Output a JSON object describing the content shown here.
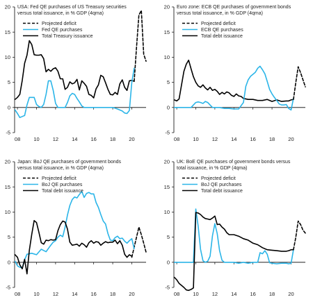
{
  "chart_data": [
    {
      "type": "line",
      "title": "USA: Fed QE purchases of US Treasury securities versus total issuance, in % GDP (4qma)",
      "title_lines": [
        "USA: Fed QE purchases of US Treasury securities",
        "versus total issuance, in % GDP (4qma)"
      ],
      "xlim": [
        2007.7,
        2021.5
      ],
      "ylim": [
        -5,
        20
      ],
      "xticks": [
        "08",
        "10",
        "12",
        "14",
        "16",
        "18",
        "20"
      ],
      "yticks": [
        "-5",
        "0",
        "5",
        "10",
        "15",
        "20"
      ],
      "legend_order": [
        2,
        1,
        0
      ],
      "series": [
        {
          "name": "Total Treasury issuance",
          "color": "#000000",
          "style": "solid",
          "x": [
            2007.75,
            2008.0,
            2008.25,
            2008.5,
            2008.75,
            2009.0,
            2009.25,
            2009.5,
            2009.75,
            2010.0,
            2010.25,
            2010.5,
            2010.75,
            2011.0,
            2011.25,
            2011.5,
            2011.75,
            2012.0,
            2012.25,
            2012.5,
            2012.75,
            2013.0,
            2013.25,
            2013.5,
            2013.75,
            2014.0,
            2014.25,
            2014.5,
            2014.75,
            2015.0,
            2015.25,
            2015.5,
            2015.75,
            2016.0,
            2016.25,
            2016.5,
            2016.75,
            2017.0,
            2017.25,
            2017.5,
            2017.75,
            2018.0,
            2018.25,
            2018.5,
            2018.75,
            2019.0,
            2019.25,
            2019.5,
            2019.75,
            2020.0,
            2020.25
          ],
          "y": [
            1.6,
            2.0,
            2.6,
            5.4,
            8.8,
            10.4,
            13.3,
            12.5,
            10.5,
            10.4,
            10.4,
            10.5,
            9.7,
            7.1,
            7.6,
            7.2,
            7.7,
            7.9,
            7.2,
            5.7,
            5.7,
            3.6,
            4.0,
            5.1,
            4.7,
            4.9,
            5.6,
            3.5,
            5.3,
            4.8,
            4.2,
            2.6,
            2.4,
            1.9,
            3.7,
            4.5,
            6.4,
            6.1,
            4.9,
            3.6,
            2.6,
            2.5,
            3.0,
            2.6,
            4.7,
            5.5,
            4.0,
            3.4,
            5.3,
            5.4,
            5.2
          ]
        },
        {
          "name": "Fed QE purchases",
          "color": "#2bb5e8",
          "style": "solid",
          "x": [
            2007.75,
            2008.0,
            2008.25,
            2008.5,
            2008.75,
            2009.0,
            2009.25,
            2009.5,
            2009.75,
            2010.0,
            2010.25,
            2010.5,
            2010.75,
            2011.0,
            2011.25,
            2011.5,
            2011.75,
            2012.0,
            2012.25,
            2012.5,
            2012.75,
            2013.0,
            2013.25,
            2013.5,
            2013.75,
            2014.0,
            2014.25,
            2014.5,
            2014.75,
            2015.0,
            2016.0,
            2017.0,
            2018.0,
            2018.5,
            2019.0,
            2019.25,
            2019.5,
            2019.75,
            2020.0,
            2020.25
          ],
          "y": [
            -0.5,
            -1.2,
            -2.0,
            -1.8,
            -1.6,
            0.5,
            2.0,
            2.0,
            2.0,
            0.6,
            0.2,
            0.0,
            0.6,
            2.6,
            5.3,
            5.3,
            3.4,
            0.8,
            0.0,
            0.0,
            0.0,
            0.0,
            1.0,
            2.3,
            2.8,
            2.6,
            1.8,
            1.1,
            0.3,
            0.0,
            0.0,
            0.0,
            0.0,
            -0.3,
            -0.7,
            -1.1,
            -1.2,
            -0.6,
            5.0,
            7.8
          ]
        },
        {
          "name": "Projected deficit",
          "color": "#000000",
          "style": "dashed",
          "x": [
            2020.25,
            2020.5,
            2020.75,
            2021.0,
            2021.25,
            2021.5
          ],
          "y": [
            5.2,
            12.0,
            18.4,
            19.3,
            10.6,
            9.2
          ]
        }
      ]
    },
    {
      "type": "line",
      "title": "Euro zone: ECB QE purchases of government bonds versus total issuance, in % GDP (4qma)",
      "title_lines": [
        "Euro zone: ECB QE purchases of government bonds",
        "versus total issuance, in % GDP (4qma)"
      ],
      "xlim": [
        2007.7,
        2021.5
      ],
      "ylim": [
        -5,
        20
      ],
      "xticks": [
        "08",
        "10",
        "12",
        "14",
        "16",
        "18",
        "20"
      ],
      "yticks": [
        "-5",
        "0",
        "5",
        "10",
        "15",
        "20"
      ],
      "legend_order": [
        2,
        1,
        0
      ],
      "series": [
        {
          "name": "Total debt issuance",
          "color": "#000000",
          "style": "solid",
          "x": [
            2007.75,
            2008.0,
            2008.25,
            2008.5,
            2008.75,
            2009.0,
            2009.25,
            2009.5,
            2009.75,
            2010.0,
            2010.25,
            2010.5,
            2010.75,
            2011.0,
            2011.25,
            2011.5,
            2011.75,
            2012.0,
            2012.25,
            2012.5,
            2012.75,
            2013.0,
            2013.25,
            2013.5,
            2013.75,
            2014.0,
            2014.25,
            2014.5,
            2014.75,
            2015.0,
            2015.5,
            2016.0,
            2016.5,
            2017.0,
            2017.5,
            2018.0,
            2018.5,
            2019.0,
            2019.5,
            2019.75,
            2020.0,
            2020.25
          ],
          "y": [
            1.5,
            1.3,
            1.7,
            4.5,
            7.2,
            8.6,
            9.4,
            7.7,
            6.1,
            5.0,
            4.3,
            4.0,
            4.5,
            3.9,
            3.5,
            4.0,
            3.4,
            3.6,
            3.2,
            2.6,
            3.0,
            2.7,
            3.1,
            2.9,
            2.4,
            2.2,
            2.7,
            2.3,
            2.2,
            1.8,
            1.6,
            1.6,
            1.4,
            1.4,
            1.6,
            1.2,
            1.5,
            1.2,
            1.3,
            1.3,
            1.5,
            1.6
          ]
        },
        {
          "name": "ECB QE purchases",
          "color": "#2bb5e8",
          "style": "solid",
          "x": [
            2007.75,
            2008.5,
            2009.0,
            2009.5,
            2010.0,
            2010.25,
            2010.5,
            2010.75,
            2011.0,
            2011.25,
            2011.5,
            2011.75,
            2012.0,
            2012.5,
            2013.0,
            2013.5,
            2014.0,
            2014.5,
            2015.0,
            2015.25,
            2015.5,
            2015.75,
            2016.0,
            2016.25,
            2016.5,
            2016.75,
            2017.0,
            2017.25,
            2017.5,
            2017.75,
            2018.0,
            2018.25,
            2018.5,
            2018.75,
            2019.0,
            2019.25,
            2019.5,
            2019.75,
            2020.0,
            2020.25
          ],
          "y": [
            0.0,
            0.0,
            0.0,
            0.0,
            1.0,
            1.1,
            1.0,
            0.8,
            1.2,
            1.0,
            0.5,
            0.0,
            0.0,
            0.0,
            -0.2,
            -0.2,
            -0.3,
            -0.3,
            1.0,
            4.2,
            5.5,
            6.2,
            6.6,
            7.0,
            7.8,
            8.2,
            7.5,
            6.7,
            5.2,
            3.6,
            2.7,
            2.0,
            1.4,
            0.7,
            0.5,
            0.5,
            0.6,
            -0.2,
            -0.5,
            1.8
          ]
        },
        {
          "name": "Projected deficit",
          "color": "#000000",
          "style": "dashed",
          "x": [
            2020.25,
            2020.5,
            2020.75,
            2021.0,
            2021.25,
            2021.5
          ],
          "y": [
            1.6,
            5.0,
            8.1,
            6.9,
            5.5,
            4.1
          ]
        }
      ]
    },
    {
      "type": "line",
      "title": "Japan: BoJ QE purchases of government bonds versus total issuance, in % GDP (4qma)",
      "title_lines": [
        "Japan: BoJ QE purchases of government bonds",
        "versus total issuance, in % GDP (4qma)"
      ],
      "xlim": [
        2007.7,
        2021.5
      ],
      "ylim": [
        -5,
        20
      ],
      "xticks": [
        "08",
        "10",
        "12",
        "14",
        "16",
        "18",
        "20"
      ],
      "yticks": [
        "-5",
        "0",
        "5",
        "10",
        "15",
        "20"
      ],
      "legend_order": [
        0,
        1,
        2
      ],
      "series": [
        {
          "name": "Projected deficit",
          "color": "#000000",
          "style": "dashed",
          "x": [
            2020.0,
            2020.25,
            2020.5,
            2020.75,
            2021.0,
            2021.25,
            2021.5
          ],
          "y": [
            1.0,
            3.0,
            5.0,
            7.0,
            5.5,
            3.8,
            2.0
          ]
        },
        {
          "name": "BoJ QE purchases",
          "color": "#2bb5e8",
          "style": "solid",
          "x": [
            2007.75,
            2008.0,
            2008.25,
            2008.5,
            2008.75,
            2009.0,
            2009.5,
            2010.0,
            2010.5,
            2011.0,
            2011.5,
            2011.75,
            2012.0,
            2012.25,
            2012.5,
            2012.75,
            2013.0,
            2013.25,
            2013.5,
            2013.75,
            2014.0,
            2014.25,
            2014.5,
            2014.75,
            2015.0,
            2015.25,
            2015.5,
            2015.75,
            2016.0,
            2016.25,
            2016.5,
            2016.75,
            2017.0,
            2017.25,
            2017.5,
            2017.75,
            2018.0,
            2018.25,
            2018.5,
            2018.75,
            2019.0,
            2019.25,
            2019.5,
            2019.75,
            2020.0,
            2020.25
          ],
          "y": [
            0.2,
            -0.7,
            -1.0,
            -1.1,
            0.5,
            1.6,
            1.8,
            1.5,
            2.6,
            2.1,
            3.4,
            4.0,
            4.3,
            5.0,
            5.4,
            5.1,
            7.0,
            9.4,
            11.3,
            12.5,
            13.0,
            12.8,
            13.5,
            14.1,
            12.9,
            13.7,
            13.9,
            13.6,
            13.6,
            11.9,
            10.9,
            9.5,
            8.2,
            7.6,
            5.7,
            4.4,
            4.3,
            4.9,
            5.2,
            4.7,
            4.8,
            4.2,
            3.8,
            4.3,
            4.7,
            2.7
          ]
        },
        {
          "name": "Total debt issuance",
          "color": "#000000",
          "style": "solid",
          "x": [
            2007.75,
            2008.0,
            2008.25,
            2008.5,
            2008.75,
            2009.0,
            2009.25,
            2009.5,
            2009.75,
            2010.0,
            2010.25,
            2010.5,
            2010.75,
            2011.0,
            2011.25,
            2011.5,
            2011.75,
            2012.0,
            2012.25,
            2012.5,
            2012.75,
            2013.0,
            2013.25,
            2013.5,
            2013.75,
            2014.0,
            2014.25,
            2014.5,
            2014.75,
            2015.0,
            2015.25,
            2015.5,
            2015.75,
            2016.0,
            2016.25,
            2016.5,
            2016.75,
            2017.0,
            2017.25,
            2017.5,
            2017.75,
            2018.0,
            2018.25,
            2018.5,
            2018.75,
            2019.0,
            2019.25,
            2019.5,
            2019.75,
            2020.0
          ],
          "y": [
            1.5,
            1.0,
            -0.5,
            -1.3,
            0.6,
            -2.3,
            2.4,
            5.6,
            8.3,
            7.9,
            6.0,
            3.9,
            3.6,
            4.4,
            4.3,
            4.5,
            4.4,
            4.5,
            6.3,
            7.5,
            8.2,
            8.0,
            6.6,
            4.0,
            3.4,
            3.5,
            3.6,
            3.2,
            3.8,
            3.5,
            3.0,
            3.9,
            4.3,
            3.8,
            4.1,
            4.0,
            3.4,
            3.8,
            4.1,
            3.9,
            4.0,
            4.0,
            4.4,
            3.7,
            4.3,
            3.4,
            1.6,
            1.0,
            1.5,
            1.2
          ]
        }
      ]
    },
    {
      "type": "line",
      "title": "UK: BoE QE purchases of government bonds versus total issuance, in % GDP (4qma)",
      "title_lines": [
        "UK: BoE QE purchases of government bonds versus",
        "total issuance, in % GDP (4qma)"
      ],
      "xlim": [
        2007.7,
        2021.5
      ],
      "ylim": [
        -5,
        20
      ],
      "xticks": [
        "08",
        "10",
        "12",
        "14",
        "16",
        "18",
        "20"
      ],
      "yticks": [
        "-5",
        "0",
        "5",
        "10",
        "15",
        "20"
      ],
      "legend_order": [
        0,
        1,
        2
      ],
      "series": [
        {
          "name": "Projected deficit",
          "color": "#000000",
          "style": "dashed",
          "x": [
            2020.25,
            2020.5,
            2020.75,
            2021.0,
            2021.25,
            2021.5
          ],
          "y": [
            2.5,
            5.0,
            8.2,
            7.5,
            6.4,
            5.8
          ]
        },
        {
          "name": "BoJ QE purchases",
          "color": "#2bb5e8",
          "style": "solid",
          "x": [
            2007.75,
            2008.5,
            2009.0,
            2009.5,
            2009.75,
            2010.0,
            2010.25,
            2010.5,
            2010.75,
            2011.0,
            2011.25,
            2011.5,
            2011.75,
            2012.0,
            2012.25,
            2012.5,
            2012.75,
            2013.0,
            2013.25,
            2013.5,
            2014.0,
            2014.5,
            2015.0,
            2015.5,
            2016.0,
            2016.5,
            2016.75,
            2017.0,
            2017.25,
            2017.5,
            2017.75,
            2018.0,
            2018.5,
            2019.0,
            2019.5,
            2019.75,
            2020.0,
            2020.25
          ],
          "y": [
            0.0,
            0.0,
            0.0,
            0.0,
            0.0,
            10.6,
            7.2,
            2.6,
            0.3,
            0.0,
            0.2,
            1.2,
            5.3,
            7.7,
            5.7,
            2.3,
            0.4,
            0.0,
            0.0,
            0.0,
            0.0,
            -0.2,
            0.0,
            -0.2,
            0.0,
            0.0,
            1.9,
            1.7,
            2.3,
            1.6,
            -0.1,
            -0.2,
            -0.3,
            -0.2,
            -0.2,
            -0.3,
            -0.2,
            2.5
          ]
        },
        {
          "name": "Total debt issuance",
          "color": "#000000",
          "style": "solid",
          "x": [
            2007.75,
            2008.0,
            2008.25,
            2008.5,
            2008.75,
            2009.0,
            2009.25,
            2009.5,
            2009.75,
            2010.0,
            2010.25,
            2010.5,
            2010.75,
            2011.0,
            2011.25,
            2011.5,
            2011.75,
            2012.0,
            2012.25,
            2012.5,
            2012.75,
            2013.0,
            2013.25,
            2013.5,
            2014.0,
            2014.5,
            2015.0,
            2015.5,
            2016.0,
            2016.5,
            2017.0,
            2017.5,
            2018.0,
            2018.5,
            2019.0,
            2019.5,
            2019.75,
            2020.0,
            2020.25
          ],
          "y": [
            -3.0,
            -3.5,
            -4.2,
            -4.6,
            -5.0,
            -5.5,
            -5.6,
            -5.4,
            -5.1,
            9.9,
            9.8,
            9.5,
            9.0,
            8.7,
            8.6,
            8.5,
            8.8,
            9.2,
            7.5,
            7.6,
            7.0,
            6.6,
            5.9,
            5.5,
            5.5,
            5.2,
            4.7,
            4.4,
            3.8,
            3.5,
            2.9,
            2.5,
            2.4,
            2.3,
            2.2,
            2.2,
            2.3,
            2.5,
            2.5
          ]
        }
      ]
    }
  ]
}
